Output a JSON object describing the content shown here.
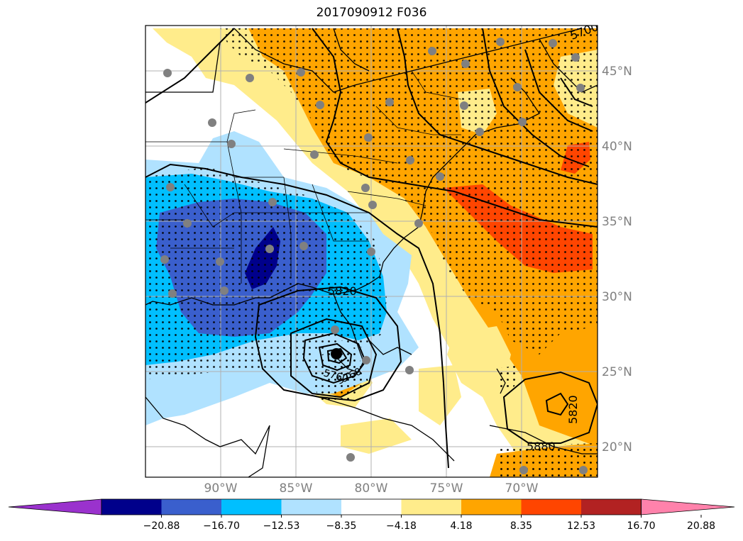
{
  "title": "2017090912 F036",
  "map": {
    "lon_labels": [
      "90°W",
      "85°W",
      "80°W",
      "75°W",
      "70°W"
    ],
    "lat_labels": [
      "45°N",
      "40°N",
      "35°N",
      "30°N",
      "25°N",
      "20°N"
    ],
    "contour_labels": [
      "5820",
      "5700",
      "5820",
      "5880",
      "5760",
      "5760"
    ],
    "colors": {
      "label_gray": "#808080",
      "grid": "#b0b0b0",
      "station": "#808080"
    }
  },
  "colorbar": {
    "ticks": [
      "−20.88",
      "−16.70",
      "−12.53",
      "−8.35",
      "−4.18",
      "4.18",
      "8.35",
      "12.53",
      "16.70",
      "20.88"
    ],
    "colors": [
      "#9a32cd",
      "#00008b",
      "#3a5fcd",
      "#00bfff",
      "#b0e2ff",
      "#ffffff",
      "#ffec8b",
      "#ffa500",
      "#ff4500",
      "#b22222",
      "#ff82ab"
    ]
  }
}
